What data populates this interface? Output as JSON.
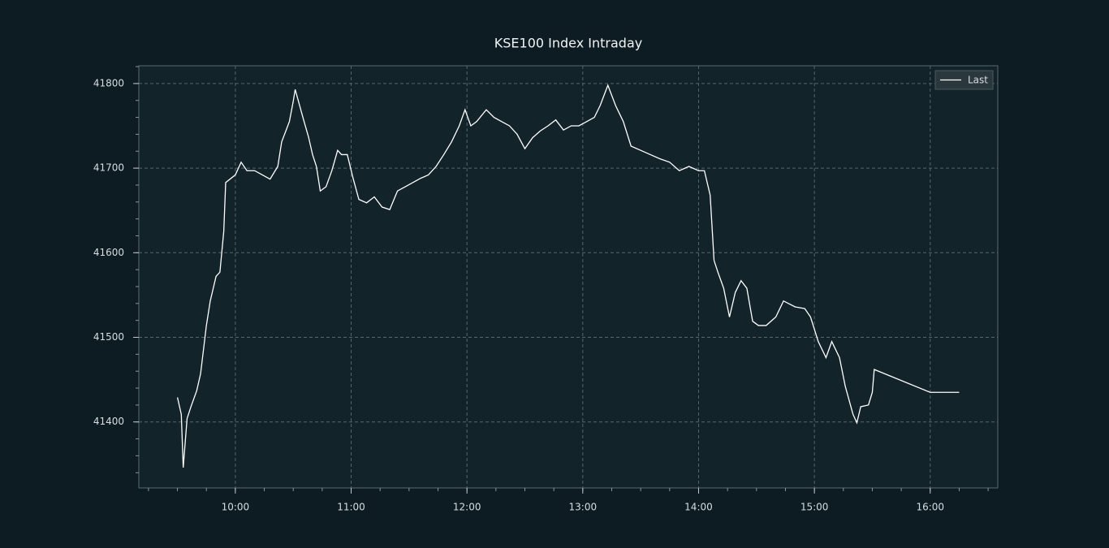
{
  "chart_data": {
    "type": "line",
    "title": "KSE100 Index Intraday",
    "x": [
      "09:30",
      "09:32",
      "09:33",
      "09:35",
      "09:37",
      "09:40",
      "09:42",
      "09:45",
      "09:47",
      "09:50",
      "09:52",
      "09:54",
      "09:55",
      "10:00",
      "10:03",
      "10:06",
      "10:10",
      "10:14",
      "10:18",
      "10:22",
      "10:24",
      "10:28",
      "10:30",
      "10:31",
      "10:35",
      "10:38",
      "10:40",
      "10:42",
      "10:44",
      "10:47",
      "10:50",
      "10:53",
      "10:55",
      "10:58",
      "11:01",
      "11:04",
      "11:08",
      "11:12",
      "11:16",
      "11:20",
      "11:24",
      "11:28",
      "11:32",
      "11:36",
      "11:40",
      "11:44",
      "11:48",
      "11:52",
      "11:56",
      "11:59",
      "12:02",
      "12:05",
      "12:10",
      "12:14",
      "12:18",
      "12:22",
      "12:26",
      "12:30",
      "12:34",
      "12:38",
      "12:42",
      "12:46",
      "12:50",
      "12:54",
      "12:58",
      "13:02",
      "13:06",
      "13:09",
      "13:13",
      "13:17",
      "13:21",
      "13:25",
      "13:30",
      "13:35",
      "13:40",
      "13:45",
      "13:50",
      "13:55",
      "14:00",
      "14:03",
      "14:06",
      "14:08",
      "14:10",
      "14:13",
      "14:16",
      "14:19",
      "14:22",
      "14:25",
      "14:28",
      "14:31",
      "14:35",
      "14:40",
      "14:44",
      "14:50",
      "14:55",
      "14:58",
      "15:02",
      "15:06",
      "15:09",
      "15:13",
      "15:16",
      "15:20",
      "15:22",
      "15:24",
      "15:28",
      "15:30",
      "15:31",
      "16:00",
      "16:15"
    ],
    "series": [
      {
        "name": "Last",
        "color": "#ffffff",
        "values": [
          41429,
          41409,
          41346,
          41404,
          41418,
          41437,
          41457,
          41514,
          41543,
          41572,
          41577,
          41625,
          41683,
          41692,
          41707,
          41697,
          41697,
          41692,
          41687,
          41702,
          41731,
          41755,
          41779,
          41793,
          41760,
          41736,
          41716,
          41702,
          41673,
          41678,
          41697,
          41721,
          41716,
          41716,
          41688,
          41663,
          41659,
          41666,
          41654,
          41651,
          41673,
          41678,
          41683,
          41688,
          41692,
          41702,
          41716,
          41731,
          41750,
          41769,
          41750,
          41755,
          41769,
          41760,
          41755,
          41750,
          41740,
          41723,
          41736,
          41744,
          41750,
          41757,
          41745,
          41750,
          41750,
          41755,
          41760,
          41774,
          41798,
          41774,
          41755,
          41726,
          41721,
          41716,
          41711,
          41707,
          41697,
          41702,
          41697,
          41697,
          41668,
          41591,
          41577,
          41558,
          41524,
          41553,
          41567,
          41558,
          41519,
          41514,
          41514,
          41524,
          41543,
          41536,
          41534,
          41524,
          41495,
          41476,
          41495,
          41476,
          41442,
          41409,
          41399,
          41418,
          41420,
          41435,
          41462,
          41435,
          41435
        ]
      }
    ],
    "xlim": [
      "09:10",
      "16:35"
    ],
    "xticks": [
      "10:00",
      "11:00",
      "12:00",
      "13:00",
      "14:00",
      "15:00",
      "16:00"
    ],
    "ylim": [
      41322,
      41821
    ],
    "yticks": [
      41400,
      41500,
      41600,
      41700,
      41800
    ],
    "grid": true,
    "legend": "upper right"
  }
}
